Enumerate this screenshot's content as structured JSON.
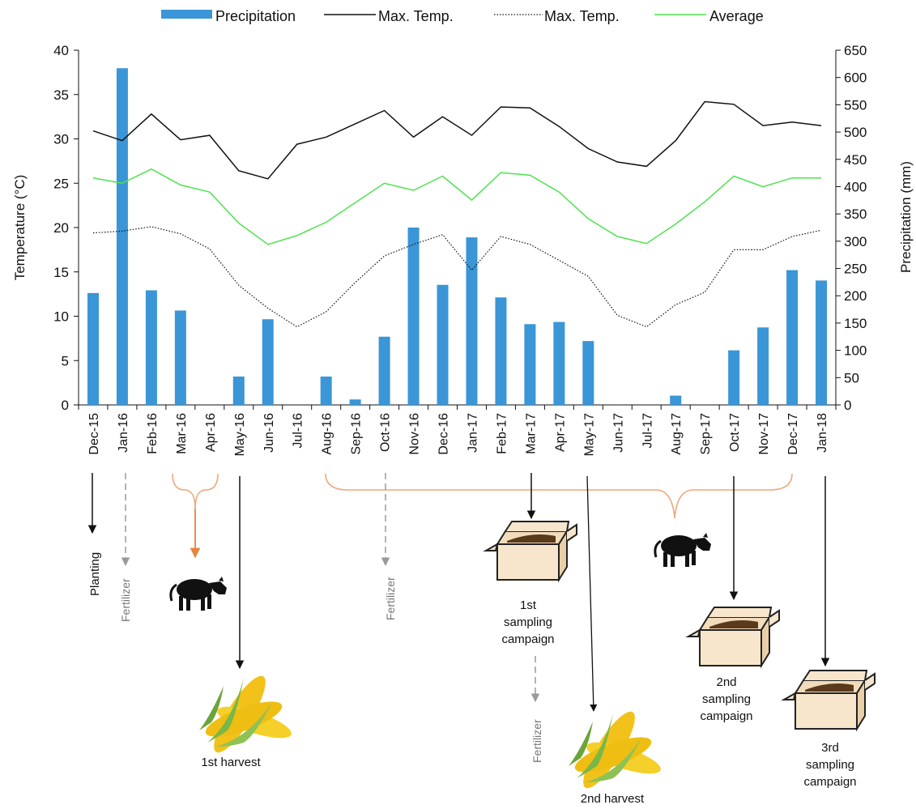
{
  "chart_data": {
    "type": "bar",
    "categories": [
      "Dec-15",
      "Jan-16",
      "Feb-16",
      "Mar-16",
      "Apr-16",
      "May-16",
      "Jun-16",
      "Jul-16",
      "Aug-16",
      "Sep-16",
      "Oct-16",
      "Nov-16",
      "Dec-16",
      "Jan-17",
      "Feb-17",
      "Mar-17",
      "Apr-17",
      "May-17",
      "Jun-17",
      "Jul-17",
      "Aug-17",
      "Sep-17",
      "Oct-17",
      "Nov-17",
      "Dec-17",
      "Jan-18"
    ],
    "series": [
      {
        "name": "Precipitation",
        "kind": "bar",
        "axis": "right",
        "color": "#3a96d6",
        "values": [
          205,
          617,
          210,
          173,
          0,
          52,
          157,
          0,
          52,
          10,
          125,
          325,
          220,
          307,
          197,
          148,
          152,
          117,
          0,
          0,
          17,
          0,
          100,
          142,
          247,
          228
        ]
      },
      {
        "name": "Max. Temp.",
        "kind": "line",
        "axis": "left",
        "color": "#111111",
        "dash": "solid",
        "values": [
          30.9,
          29.8,
          32.8,
          29.9,
          30.4,
          26.4,
          25.5,
          29.4,
          30.2,
          31.7,
          33.2,
          30.2,
          32.5,
          30.4,
          33.6,
          33.5,
          31.4,
          28.9,
          27.4,
          26.9,
          29.8,
          34.2,
          33.9,
          31.5,
          31.9,
          31.5
        ]
      },
      {
        "name": "Max. Temp.",
        "kind": "line",
        "axis": "left",
        "color": "#111111",
        "dash": "dotted",
        "values": [
          19.4,
          19.6,
          20.1,
          19.3,
          17.6,
          13.5,
          10.9,
          8.8,
          10.5,
          13.8,
          16.8,
          18.1,
          19.2,
          15.2,
          19.0,
          18.1,
          16.3,
          14.5,
          10.1,
          8.8,
          11.3,
          12.7,
          17.5,
          17.5,
          19.0,
          19.7
        ]
      },
      {
        "name": "Average",
        "kind": "line",
        "axis": "left",
        "color": "#4ee34e",
        "dash": "solid",
        "values": [
          25.6,
          25.0,
          26.6,
          24.8,
          24.0,
          20.5,
          18.1,
          19.1,
          20.6,
          22.8,
          25.0,
          24.2,
          25.8,
          23.1,
          26.2,
          25.9,
          24.0,
          21.0,
          19.0,
          18.2,
          20.4,
          22.9,
          25.8,
          24.6,
          25.6,
          25.6
        ]
      }
    ],
    "y_left": {
      "label": "Temperature (°C)",
      "ticks": [
        "0",
        "5",
        "10",
        "15",
        "20",
        "25",
        "30",
        "35",
        "40"
      ],
      "range": [
        0,
        40
      ]
    },
    "y_right": {
      "label": "Precipitation (mm)",
      "ticks": [
        "0",
        "50",
        "100",
        "150",
        "200",
        "250",
        "300",
        "350",
        "400",
        "450",
        "500",
        "550",
        "600",
        "650"
      ],
      "range": [
        0,
        650
      ]
    },
    "legend_position": "top",
    "grid": false
  },
  "annotations": {
    "planting": "Planting",
    "fertilizer_1": "Fertilizer",
    "fertilizer_2": "Fertilizer",
    "fertilizer_3": "Fertilizer",
    "harvest_1": "1st harvest",
    "harvest_2": "2nd harvest",
    "sampling_1": [
      "1st",
      "sampling",
      "campaign"
    ],
    "sampling_2": [
      "2nd",
      "sampling",
      "campaign"
    ],
    "sampling_3": [
      "3rd",
      "sampling",
      "campaign"
    ]
  },
  "colors": {
    "bar": "#3a96d6",
    "max_temp": "#111111",
    "min_temp": "#111111",
    "average": "#4ee34e",
    "bracket": "#f0a77a",
    "orange_arrow": "#e8823c",
    "gray_arrow": "#9a9a9a"
  },
  "icons": [
    "cow-icon",
    "corn-icon",
    "soil-box-icon"
  ]
}
